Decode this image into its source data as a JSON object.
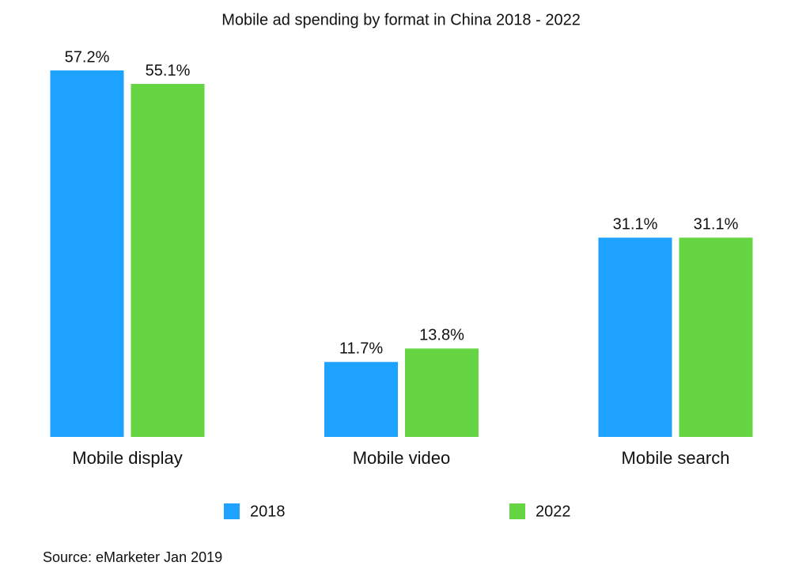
{
  "chart_data": {
    "type": "bar",
    "title": "Mobile ad spending by format in China 2018 - 2022",
    "categories": [
      "Mobile display",
      "Mobile video",
      "Mobile search"
    ],
    "series": [
      {
        "name": "2018",
        "color": "#1ea2ff",
        "values": [
          57.2,
          11.7,
          31.1
        ],
        "value_labels": [
          "57.2%",
          "11.7%",
          "31.1%"
        ]
      },
      {
        "name": "2022",
        "color": "#66d544",
        "values": [
          55.1,
          13.8,
          31.1
        ],
        "value_labels": [
          "55.1%",
          "13.8%",
          "31.1%"
        ]
      }
    ],
    "legend": "bottom",
    "source": "Source: eMarketer Jan 2019"
  }
}
